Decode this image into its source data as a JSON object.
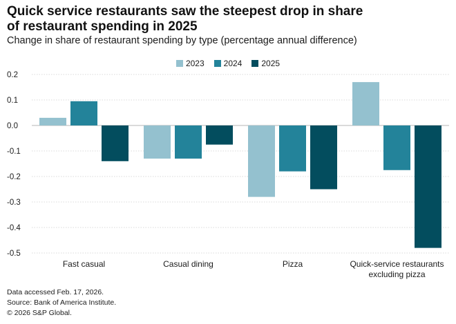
{
  "title_line1": "Quick service restaurants saw the steepest drop in share",
  "title_line2": "of restaurant spending in 2025",
  "subtitle": "Change in share of restaurant spending by type (percentage annual difference)",
  "footer": {
    "line1": "Data accessed Feb. 17, 2026.",
    "line2": "Source: Bank of America Institute.",
    "line3": "© 2026 S&P Global."
  },
  "chart_data": {
    "type": "bar",
    "title": "Quick service restaurants saw the steepest drop in share of restaurant spending in 2025",
    "subtitle": "Change in share of restaurant spending by type (percentage annual difference)",
    "xlabel": "",
    "ylabel": "",
    "categories": [
      [
        "Fast casual"
      ],
      [
        "Casual dining"
      ],
      [
        "Pizza"
      ],
      [
        "Quick-service restaurants",
        "excluding pizza"
      ]
    ],
    "series": [
      {
        "name": "2023",
        "color": "#94c1cf",
        "values": [
          0.03,
          -0.13,
          -0.28,
          0.17
        ]
      },
      {
        "name": "2024",
        "color": "#23839a",
        "values": [
          0.095,
          -0.13,
          -0.18,
          -0.175
        ]
      },
      {
        "name": "2025",
        "color": "#034d5e",
        "values": [
          -0.14,
          -0.075,
          -0.25,
          -0.48
        ]
      }
    ],
    "ylim": [
      -0.5,
      0.2
    ],
    "yticks": [
      "0.2",
      "0.1",
      "0.0",
      "-0.1",
      "-0.2",
      "-0.3",
      "-0.4",
      "-0.5"
    ],
    "ytick_values": [
      0.2,
      0.1,
      0.0,
      -0.1,
      -0.2,
      -0.3,
      -0.4,
      -0.5
    ],
    "grid": true,
    "legend_position": "top-center"
  }
}
